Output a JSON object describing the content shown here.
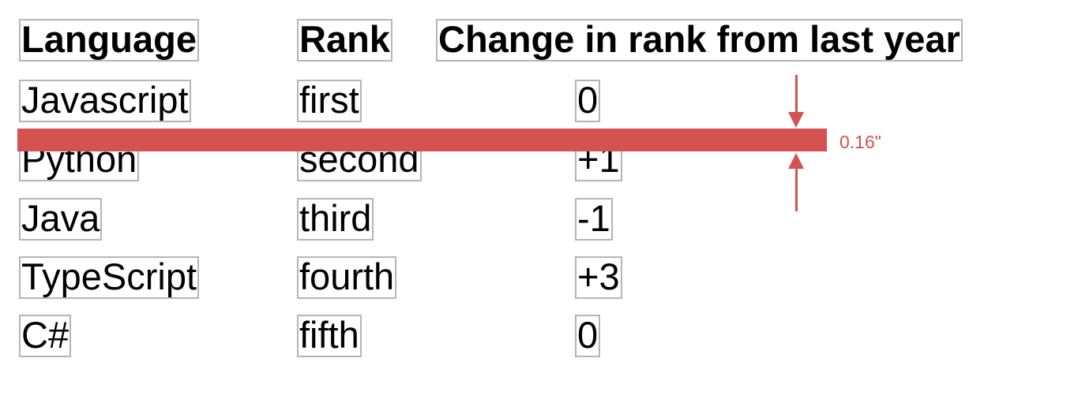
{
  "table": {
    "headers": [
      "Language",
      "Rank",
      "Change in rank from last year"
    ],
    "rows": [
      [
        "Javascript",
        "first",
        "0"
      ],
      [
        "Python",
        "second",
        "+1"
      ],
      [
        "Java",
        "third",
        "-1"
      ],
      [
        "TypeScript",
        "fourth",
        "+3"
      ],
      [
        "C#",
        "fifth",
        "0"
      ]
    ]
  },
  "measurement": {
    "label": "0.16\"",
    "color": "#d4524f"
  }
}
